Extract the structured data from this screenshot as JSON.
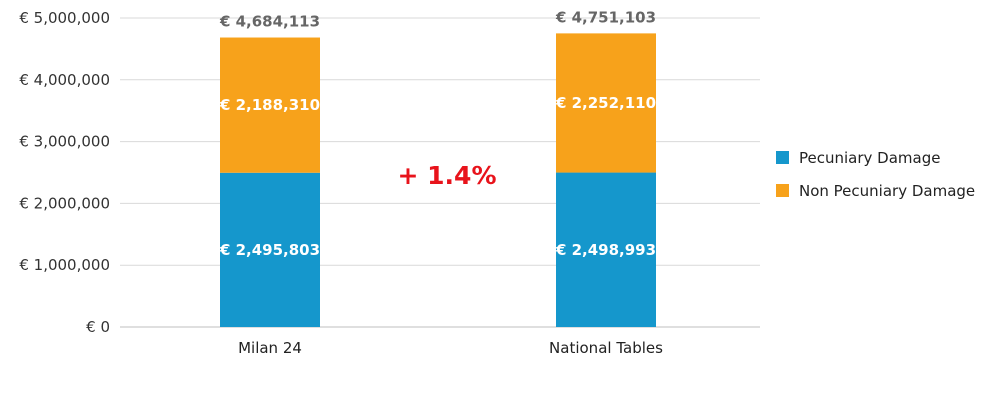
{
  "chart_data": {
    "type": "bar",
    "stacked": true,
    "categories": [
      "Milan 24",
      "National Tables"
    ],
    "series": [
      {
        "name": "Pecuniary Damage",
        "values": [
          2495803,
          2498993
        ],
        "color": "#1597cc"
      },
      {
        "name": "Non Pecuniary Damage",
        "values": [
          2188310,
          2252110
        ],
        "color": "#f7a21b"
      }
    ],
    "segment_labels": [
      [
        "€ 2,495,803",
        "€ 2,498,993"
      ],
      [
        "€ 2,188,310",
        "€ 2,252,110"
      ]
    ],
    "totals": [
      4684113,
      4751103
    ],
    "total_labels": [
      "€ 4,684,113",
      "€ 4,751,103"
    ],
    "y_ticks": [
      0,
      1000000,
      2000000,
      3000000,
      4000000,
      5000000
    ],
    "y_tick_labels": [
      "€ 0",
      "€ 1,000,000",
      "€ 2,000,000",
      "€ 3,000,000",
      "€ 4,000,000",
      "€ 5,000,000"
    ],
    "ylim": [
      0,
      5000000
    ],
    "grid": true,
    "legend_position": "right",
    "annotation": "+ 1.4%",
    "annotation_color": "#e8131b",
    "title": "",
    "xlabel": "",
    "ylabel": ""
  }
}
